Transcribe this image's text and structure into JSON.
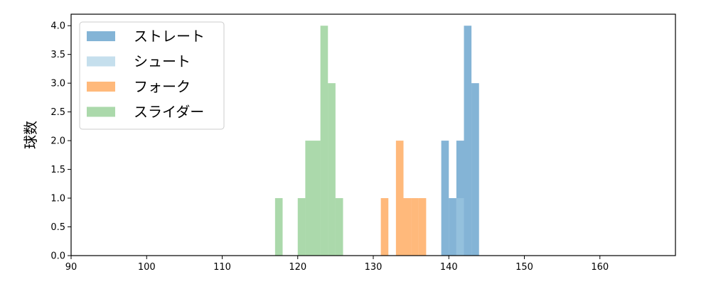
{
  "chart_data": {
    "type": "bar",
    "subtype": "histogram",
    "ylabel": "球数",
    "xlabel": "",
    "xlim": [
      90,
      170
    ],
    "ylim": [
      0,
      4.2
    ],
    "xticks": [
      90,
      100,
      110,
      120,
      130,
      140,
      150,
      160
    ],
    "xtick_labels": [
      "90",
      "100",
      "110",
      "120",
      "130",
      "140",
      "150",
      "160"
    ],
    "yticks": [
      0,
      0.5,
      1.0,
      1.5,
      2.0,
      2.5,
      3.0,
      3.5,
      4.0
    ],
    "ytick_labels": [
      "0.0",
      "0.5",
      "1.0",
      "1.5",
      "2.0",
      "2.5",
      "3.0",
      "3.5",
      "4.0"
    ],
    "grid": false,
    "legend_position": "top-left",
    "series": [
      {
        "name": "ストレート",
        "color": "#1f77b4",
        "alpha": 0.55,
        "bins": [
          {
            "x0": 139,
            "x1": 140,
            "count": 2
          },
          {
            "x0": 140,
            "x1": 141,
            "count": 1
          },
          {
            "x0": 141,
            "x1": 142,
            "count": 2
          },
          {
            "x0": 142,
            "x1": 143,
            "count": 4
          },
          {
            "x0": 143,
            "x1": 144,
            "count": 3
          }
        ]
      },
      {
        "name": "シュート",
        "color": "#9ecae1",
        "alpha": 0.6,
        "bins": [
          {
            "x0": 141,
            "x1": 142,
            "count": 1
          }
        ]
      },
      {
        "name": "フォーク",
        "color": "#ff7f0e",
        "alpha": 0.55,
        "bins": [
          {
            "x0": 131,
            "x1": 132,
            "count": 1
          },
          {
            "x0": 133,
            "x1": 134,
            "count": 2
          },
          {
            "x0": 134,
            "x1": 135,
            "count": 1
          },
          {
            "x0": 135,
            "x1": 136,
            "count": 1
          },
          {
            "x0": 136,
            "x1": 137,
            "count": 1
          }
        ]
      },
      {
        "name": "スライダー",
        "color": "#2ca02c",
        "alpha": 0.4,
        "bins": [
          {
            "x0": 117,
            "x1": 118,
            "count": 1
          },
          {
            "x0": 120,
            "x1": 121,
            "count": 1
          },
          {
            "x0": 121,
            "x1": 122,
            "count": 2
          },
          {
            "x0": 122,
            "x1": 123,
            "count": 2
          },
          {
            "x0": 123,
            "x1": 124,
            "count": 4
          },
          {
            "x0": 124,
            "x1": 125,
            "count": 3
          },
          {
            "x0": 125,
            "x1": 126,
            "count": 1
          }
        ]
      }
    ]
  }
}
